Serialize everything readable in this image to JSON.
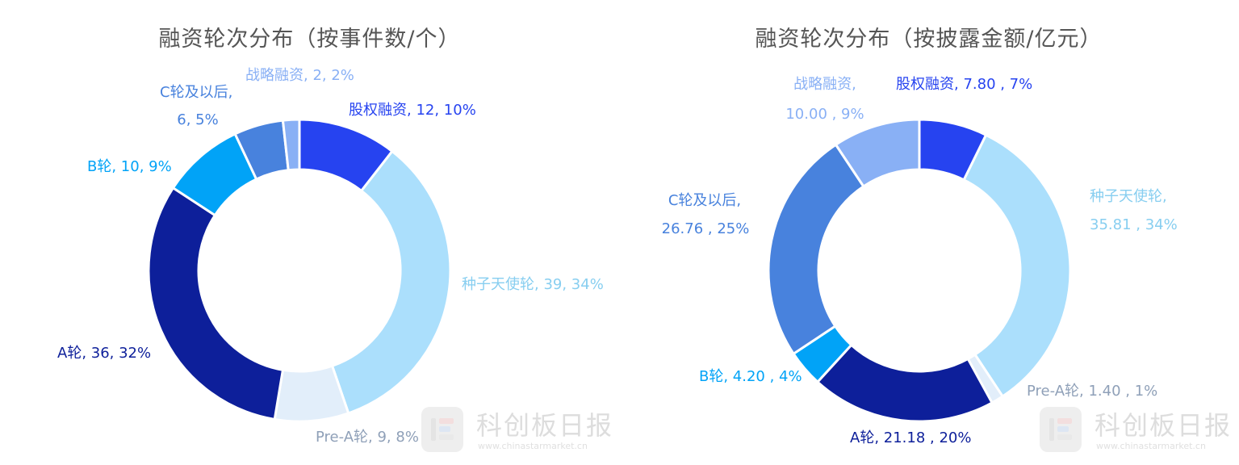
{
  "chart_data": [
    {
      "type": "pie",
      "title": "融资轮次分布（按事件数/个）",
      "categories": [
        "股权融资",
        "种子天使轮",
        "Pre-A轮",
        "A轮",
        "B轮",
        "C轮及以后",
        "战略融资"
      ],
      "values": [
        12,
        39,
        9,
        36,
        10,
        6,
        2
      ],
      "value_labels": [
        "12",
        "39",
        "9",
        "36",
        "10",
        "6",
        "2"
      ],
      "percent_labels": [
        "10%",
        "34%",
        "8%",
        "32%",
        "9%",
        "5%",
        "2%"
      ],
      "colors": [
        "#2643F0",
        "#ABDFFC",
        "#E2EEFA",
        "#0D1F9A",
        "#01A3F7",
        "#4882DD",
        "#89B0F5"
      ],
      "label_colors": [
        "#2643F0",
        "#87CEF0",
        "#8FA0B8",
        "#0D1F9A",
        "#01A3F7",
        "#4882DD",
        "#89B0F5"
      ],
      "legend": "none"
    },
    {
      "type": "pie",
      "title": "融资轮次分布（按披露金额/亿元）",
      "categories": [
        "股权融资",
        "种子天使轮",
        "Pre-A轮",
        "A轮",
        "B轮",
        "C轮及以后",
        "战略融资"
      ],
      "values": [
        7.8,
        35.81,
        1.4,
        21.18,
        4.2,
        26.76,
        10.0
      ],
      "value_labels": [
        "7.80 ",
        "35.81 ",
        "1.40 ",
        "21.18 ",
        "4.20 ",
        "26.76 ",
        "10.00 "
      ],
      "percent_labels": [
        "7%",
        "34%",
        "1%",
        "20%",
        "4%",
        "25%",
        "9%"
      ],
      "colors": [
        "#2643F0",
        "#ABDFFC",
        "#E2EEFA",
        "#0D1F9A",
        "#01A3F7",
        "#4882DD",
        "#89B0F5"
      ],
      "label_colors": [
        "#2643F0",
        "#87CEF0",
        "#8FA0B8",
        "#0D1F9A",
        "#01A3F7",
        "#4882DD",
        "#89B0F5"
      ],
      "legend": "none"
    }
  ],
  "watermark": {
    "name": "科创板日报",
    "url": "www.chinastarmarket.cn"
  }
}
